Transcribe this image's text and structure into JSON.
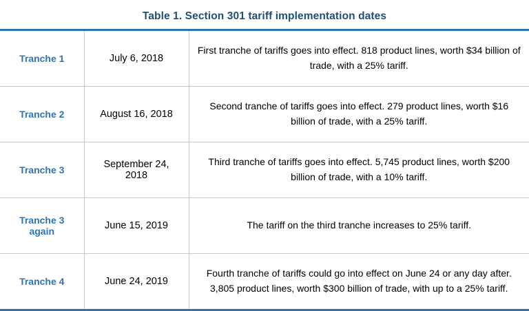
{
  "title": "Table 1. Section 301 tariff implementation dates",
  "rows": [
    {
      "tranche": "Tranche 1",
      "date": "July 6, 2018",
      "description": "First tranche of tariffs goes into effect. 818 product lines, worth $34 billion of trade, with a 25% tariff."
    },
    {
      "tranche": "Tranche 2",
      "date": "August 16, 2018",
      "description": "Second tranche of tariffs goes into effect. 279 product lines, worth $16 billion of trade, with a 25% tariff."
    },
    {
      "tranche": "Tranche 3",
      "date": "September 24, 2018",
      "description": "Third tranche of tariffs goes into effect. 5,745 product lines, worth $200 billion of trade, with a 10% tariff."
    },
    {
      "tranche": "Tranche 3 again",
      "date": "June 15, 2019",
      "description": "The tariff on the third tranche increases to 25% tariff."
    },
    {
      "tranche": "Tranche 4",
      "date": "June 24, 2019",
      "description": "Fourth tranche of tariffs could go into effect on June 24 or any day after.  3,805 product lines, worth $300 billion of trade, with up to a 25% tariff."
    }
  ],
  "colors": {
    "title_blue": "#1F4E79",
    "tranche_blue": "#2E74B5",
    "rule_blue": "#2E74B5",
    "grid_gray": "#C9C9C9"
  }
}
